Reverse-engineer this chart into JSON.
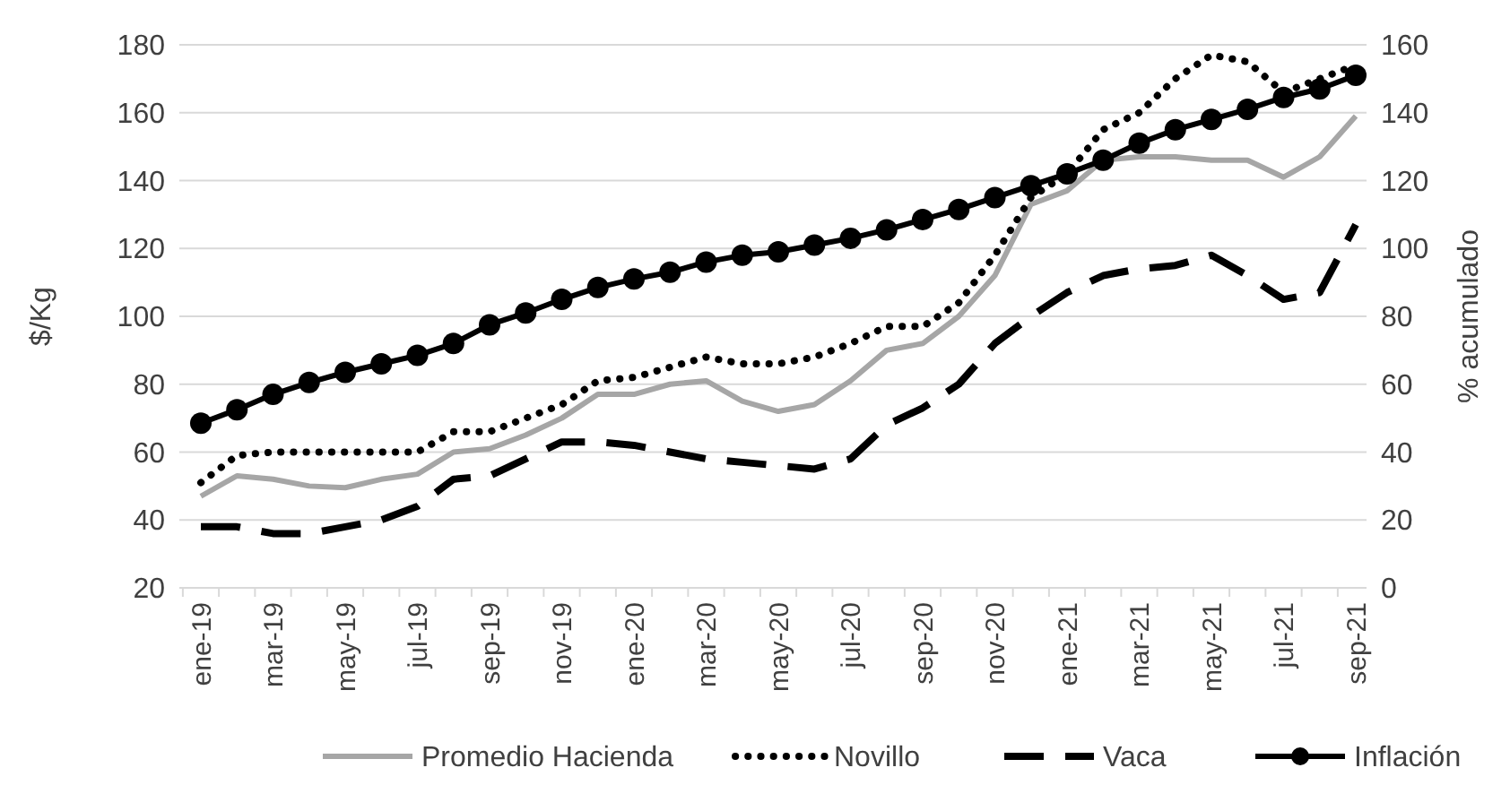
{
  "chart_data": {
    "type": "line",
    "ylabel": "$/Kg",
    "y2label": "% acumulado",
    "categories": [
      "ene-19",
      null,
      "mar-19",
      null,
      "may-19",
      null,
      "jul-19",
      null,
      "sep-19",
      null,
      "nov-19",
      null,
      "ene-20",
      null,
      "mar-20",
      null,
      "may-20",
      null,
      "jul-20",
      null,
      "sep-20",
      null,
      "nov-20",
      null,
      "ene-21",
      null,
      "mar-21",
      null,
      "may-21",
      null,
      "jul-21",
      null,
      "sep-21"
    ],
    "ylim": [
      20,
      180
    ],
    "yticks": [
      20,
      40,
      60,
      80,
      100,
      120,
      140,
      160,
      180
    ],
    "y2lim": [
      0,
      160
    ],
    "y2ticks": [
      0,
      20,
      40,
      60,
      80,
      100,
      120,
      140,
      160
    ],
    "grid": "y",
    "legend": "bottom",
    "series": [
      {
        "name": "Promedio Hacienda",
        "color": "#a6a6a6",
        "line_style": "solid",
        "marker": "none",
        "values": [
          47,
          53,
          52,
          50,
          49.5,
          52,
          53.5,
          60,
          61,
          65,
          70,
          77,
          77,
          80,
          81,
          75,
          72,
          74,
          81,
          90,
          92,
          100,
          112,
          133,
          137,
          146,
          147,
          147,
          146,
          146,
          141,
          147,
          159
        ]
      },
      {
        "name": "Novillo",
        "color": "#000000",
        "line_style": "dotted",
        "marker": "none",
        "values": [
          51,
          59,
          60,
          60,
          60,
          60,
          60,
          66,
          66,
          70,
          74,
          81,
          82,
          85,
          88,
          86,
          86,
          88,
          92,
          97,
          97,
          104,
          118,
          135,
          142,
          155,
          160,
          170,
          177,
          175,
          166,
          170,
          174
        ]
      },
      {
        "name": "Vaca",
        "color": "#000000",
        "line_style": "dashed",
        "marker": "none",
        "values": [
          38,
          38,
          36,
          36,
          38,
          40,
          44,
          52,
          53,
          58,
          63,
          63,
          62,
          60,
          58,
          57,
          56,
          55,
          58,
          68,
          73,
          80,
          92,
          100,
          107,
          112,
          114,
          115,
          118,
          112,
          105,
          107,
          127
        ]
      },
      {
        "name": "Inflación",
        "color": "#000000",
        "line_style": "solid",
        "marker": "circle",
        "axis": "y2",
        "values": [
          48.5,
          52.5,
          57,
          60.5,
          63.5,
          66,
          68.5,
          72,
          77.5,
          81,
          85,
          88.5,
          91,
          93,
          96,
          98,
          99,
          101,
          103,
          105.5,
          108.5,
          111.5,
          115,
          118.5,
          122,
          126,
          131,
          135,
          138,
          141,
          144.5,
          147,
          151
        ]
      }
    ]
  }
}
